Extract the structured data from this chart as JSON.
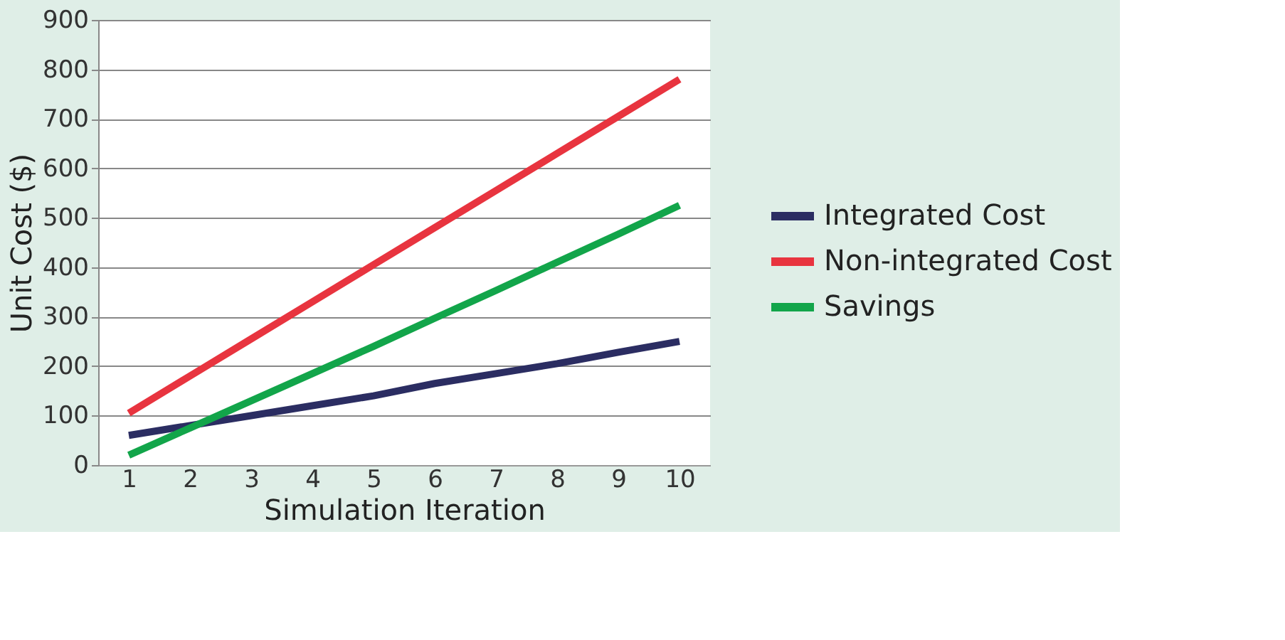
{
  "chart_data": {
    "type": "line",
    "xlabel": "Simulation Iteration",
    "ylabel": "Unit Cost ($)",
    "categories": [
      "1",
      "2",
      "3",
      "4",
      "5",
      "6",
      "7",
      "8",
      "9",
      "10"
    ],
    "series": [
      {
        "name": "Integrated Cost",
        "color": "#2b2d62",
        "values": [
          60,
          80,
          100,
          120,
          140,
          165,
          185,
          205,
          228,
          250
        ]
      },
      {
        "name": "Non-integrated Cost",
        "color": "#e8343f",
        "values": [
          105,
          180,
          255,
          330,
          405,
          480,
          555,
          630,
          705,
          780
        ]
      },
      {
        "name": "Savings",
        "color": "#12a54a",
        "values": [
          20,
          75,
          130,
          185,
          240,
          297,
          353,
          410,
          467,
          525
        ]
      }
    ],
    "ylim": [
      0,
      900
    ],
    "yticks": [
      0,
      100,
      200,
      300,
      400,
      500,
      600,
      700,
      800,
      900
    ],
    "grid": "y",
    "legend": "right",
    "marker": "none",
    "line_style": "solid"
  }
}
